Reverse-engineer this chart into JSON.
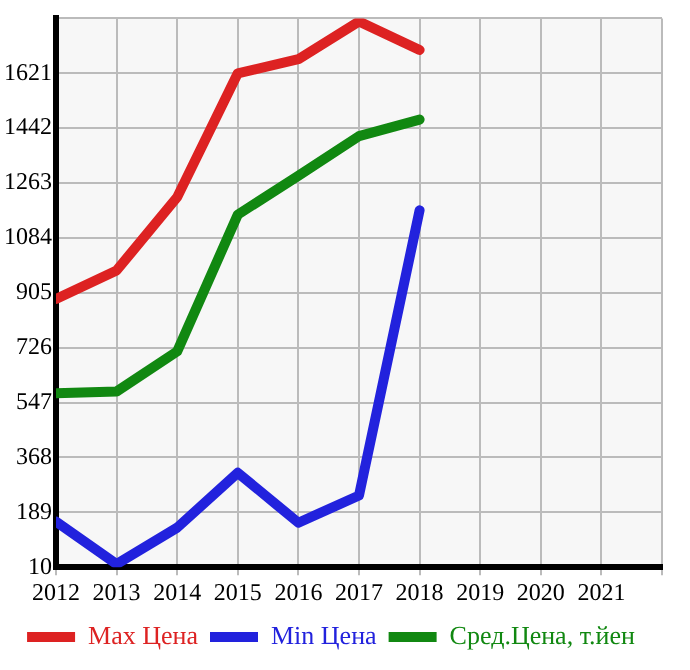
{
  "chart_data": {
    "type": "line",
    "x": [
      2012,
      2013,
      2014,
      2015,
      2016,
      2017,
      2018
    ],
    "series": [
      {
        "name": "Max Цена",
        "color": "#dd2222",
        "values": [
          885,
          978,
          1217,
          1621,
          1667,
          1790,
          1697
        ]
      },
      {
        "name": "Min Цена",
        "color": "#2222dd",
        "values": [
          159,
          20,
          139,
          318,
          155,
          244,
          1174
        ]
      },
      {
        "name": "Сред.Цена, т.йен",
        "color": "#118811",
        "values": [
          577,
          583,
          714,
          1160,
          1287,
          1416,
          1470
        ]
      }
    ],
    "xlim": [
      2012,
      2022
    ],
    "xticks": [
      2012,
      2013,
      2014,
      2015,
      2016,
      2017,
      2018,
      2019,
      2020,
      2021,
      {
        "value": 2022,
        "label": null
      }
    ],
    "ylim": [
      10,
      1800
    ],
    "yticks": [
      10,
      189,
      368,
      547,
      726,
      905,
      1084,
      1263,
      1442,
      1621,
      {
        "value": 1800,
        "label": null
      }
    ],
    "grid": true,
    "legend": "bottom",
    "marker": "none",
    "line_style": "solid"
  }
}
